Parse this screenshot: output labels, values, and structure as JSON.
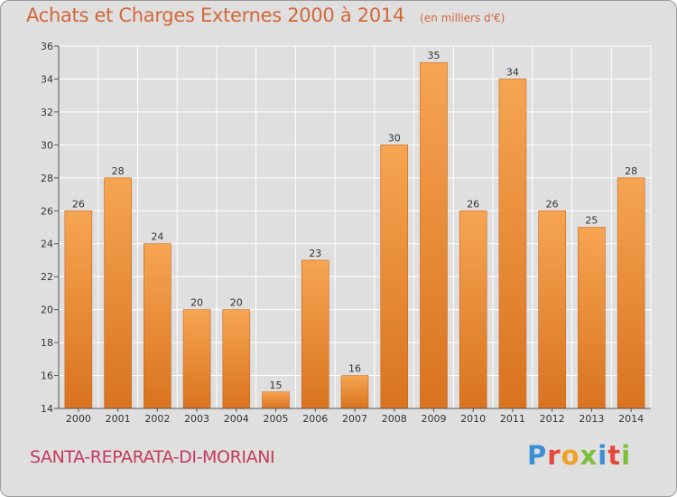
{
  "chart_data": {
    "type": "bar",
    "title": "Achats et Charges Externes 2000 à 2014",
    "unit": "(en milliers d'€)",
    "categories": [
      "2000",
      "2001",
      "2002",
      "2003",
      "2004",
      "2005",
      "2006",
      "2007",
      "2008",
      "2009",
      "2010",
      "2011",
      "2012",
      "2013",
      "2014"
    ],
    "values": [
      26,
      28,
      24,
      20,
      20,
      15,
      23,
      16,
      30,
      35,
      26,
      34,
      26,
      25,
      28
    ],
    "ylim": [
      14,
      36
    ],
    "yticks": [
      14,
      16,
      18,
      20,
      22,
      24,
      26,
      28,
      30,
      32,
      34,
      36
    ],
    "grid": true,
    "bar_color": "#f09a45",
    "legend": "none"
  },
  "footer": {
    "commune": "SANTA-REPARATA-DI-MORIANI",
    "logo_text": "Proxiti"
  },
  "colors": {
    "title": "#d2683a",
    "commune": "#c53a5e",
    "background": "#dfdfdf",
    "logo_letters": [
      "#3b8fd6",
      "#e5483c",
      "#f0a024",
      "#7cbf3b",
      "#3b8fd6",
      "#e5483c",
      "#7cbf3b"
    ]
  }
}
